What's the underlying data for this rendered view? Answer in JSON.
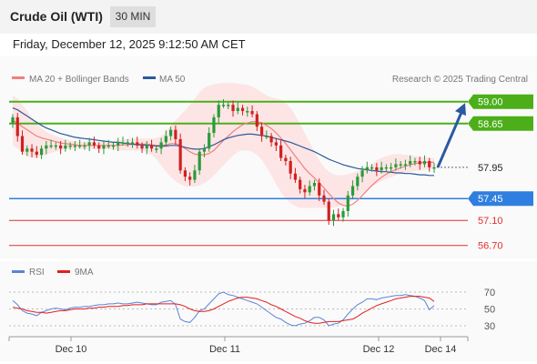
{
  "header": {
    "title": "Crude Oil (WTI)",
    "timeframe": "30 MIN",
    "datetime": "Friday, December 12, 2025 9:12:50 AM CET"
  },
  "legend": {
    "ma20_label": "MA 20 + Bollinger Bands",
    "ma50_label": "MA 50",
    "copyright": "Research © 2025 Trading Central",
    "rsi_label": "RSI",
    "ma9_label": "9MA"
  },
  "colors": {
    "resistance": "#4caf1a",
    "pivot": "#2f7fe0",
    "support": "#e03030",
    "current": "#333333",
    "ma20": "#f08080",
    "ma50": "#2a5a9a",
    "band": "#fde0e0",
    "rsi": "#5b84d6",
    "rsi_ma": "#e02020",
    "bull": "#2a9a3a",
    "bear": "#d02020",
    "arrow": "#2a5aa0"
  },
  "chart_data": [
    {
      "type": "candlestick",
      "title": "",
      "ylim": [
        56.55,
        59.2
      ],
      "x_ticks": [
        "Dec 10",
        "Dec 11",
        "Dec 12",
        "Dec 14"
      ],
      "levels": [
        {
          "value": 59.0,
          "label": "59.00",
          "kind": "resistance"
        },
        {
          "value": 58.65,
          "label": "58.65",
          "kind": "resistance"
        },
        {
          "value": 57.95,
          "label": "57.95",
          "kind": "current"
        },
        {
          "value": 57.45,
          "label": "57.45",
          "kind": "pivot"
        },
        {
          "value": 57.1,
          "label": "57.10",
          "kind": "support"
        },
        {
          "value": 56.7,
          "label": "56.70",
          "kind": "support"
        }
      ],
      "close": [
        58.75,
        58.45,
        58.2,
        58.25,
        58.2,
        58.15,
        58.25,
        58.3,
        58.3,
        58.3,
        58.25,
        58.3,
        58.3,
        58.3,
        58.3,
        58.3,
        58.35,
        58.3,
        58.25,
        58.3,
        58.3,
        58.3,
        58.35,
        58.35,
        58.35,
        58.35,
        58.3,
        58.25,
        58.3,
        58.25,
        58.25,
        58.35,
        58.45,
        58.55,
        58.4,
        57.9,
        57.8,
        57.75,
        57.9,
        58.2,
        58.25,
        58.5,
        58.75,
        58.95,
        58.95,
        58.95,
        58.85,
        58.9,
        58.85,
        58.85,
        58.8,
        58.6,
        58.45,
        58.45,
        58.35,
        58.3,
        58.1,
        58.05,
        57.85,
        57.75,
        57.6,
        57.55,
        57.65,
        57.7,
        57.5,
        57.4,
        57.1,
        57.2,
        57.15,
        57.25,
        57.5,
        57.65,
        57.8,
        57.9,
        57.95,
        57.95,
        57.9,
        57.95,
        57.95,
        57.95,
        58.0,
        58.0,
        58.0,
        58.05,
        58.05,
        58.0,
        58.05,
        57.95,
        57.95
      ],
      "open": [
        58.65,
        58.75,
        58.45,
        58.2,
        58.25,
        58.2,
        58.15,
        58.25,
        58.3,
        58.3,
        58.3,
        58.25,
        58.3,
        58.3,
        58.3,
        58.3,
        58.3,
        58.35,
        58.3,
        58.25,
        58.3,
        58.3,
        58.3,
        58.35,
        58.35,
        58.35,
        58.35,
        58.3,
        58.25,
        58.3,
        58.25,
        58.25,
        58.35,
        58.45,
        58.55,
        58.4,
        57.9,
        57.8,
        57.75,
        57.9,
        58.2,
        58.25,
        58.5,
        58.75,
        58.95,
        58.95,
        58.95,
        58.85,
        58.9,
        58.85,
        58.85,
        58.8,
        58.6,
        58.45,
        58.45,
        58.35,
        58.3,
        58.1,
        58.05,
        57.85,
        57.75,
        57.6,
        57.55,
        57.65,
        57.7,
        57.5,
        57.4,
        57.1,
        57.2,
        57.15,
        57.25,
        57.5,
        57.65,
        57.8,
        57.9,
        57.95,
        57.95,
        57.9,
        57.95,
        57.95,
        57.95,
        58.0,
        58.0,
        58.0,
        58.05,
        58.05,
        58.0,
        58.05,
        57.95
      ],
      "ma20": [
        58.7,
        58.66,
        58.6,
        58.55,
        58.5,
        58.45,
        58.42,
        58.4,
        58.38,
        58.36,
        58.34,
        58.33,
        58.32,
        58.31,
        58.3,
        58.3,
        58.3,
        58.3,
        58.3,
        58.3,
        58.3,
        58.3,
        58.3,
        58.31,
        58.31,
        58.32,
        58.32,
        58.32,
        58.32,
        58.31,
        58.3,
        58.3,
        58.31,
        58.33,
        58.33,
        58.3,
        58.25,
        58.2,
        58.16,
        58.15,
        58.15,
        58.17,
        58.22,
        58.3,
        58.38,
        58.45,
        58.52,
        58.58,
        58.63,
        58.66,
        58.68,
        58.68,
        58.66,
        58.62,
        58.57,
        58.5,
        58.42,
        58.33,
        58.23,
        58.13,
        58.03,
        57.93,
        57.85,
        57.78,
        57.7,
        57.62,
        57.53,
        57.45,
        57.38,
        57.34,
        57.33,
        57.36,
        57.42,
        57.5,
        57.58,
        57.66,
        57.73,
        57.79,
        57.84,
        57.88,
        57.91,
        57.94,
        57.97,
        57.99,
        58.01,
        58.02,
        58.03,
        58.03,
        58.03
      ],
      "ma50": [
        58.9,
        58.87,
        58.82,
        58.77,
        58.72,
        58.67,
        58.62,
        58.58,
        58.55,
        58.52,
        58.49,
        58.47,
        58.45,
        58.43,
        58.42,
        58.41,
        58.4,
        58.39,
        58.38,
        58.37,
        58.36,
        58.35,
        58.35,
        58.34,
        58.33,
        58.32,
        58.31,
        58.31,
        58.3,
        58.3,
        58.29,
        58.29,
        58.29,
        58.3,
        58.3,
        58.29,
        58.27,
        58.25,
        58.24,
        58.24,
        58.25,
        58.28,
        58.31,
        58.35,
        58.39,
        58.42,
        58.44,
        58.46,
        58.47,
        58.48,
        58.48,
        58.47,
        58.46,
        58.45,
        58.43,
        58.41,
        58.39,
        58.37,
        58.35,
        58.32,
        58.29,
        58.26,
        58.23,
        58.2,
        58.16,
        58.12,
        58.08,
        58.05,
        58.02,
        57.99,
        57.97,
        57.95,
        57.93,
        57.92,
        57.91,
        57.9,
        57.89,
        57.88,
        57.88,
        57.87,
        57.86,
        57.86,
        57.85,
        57.85,
        57.84,
        57.83,
        57.83,
        57.82,
        57.82
      ],
      "bb_upper": [
        59.1,
        59.05,
        58.95,
        58.85,
        58.75,
        58.65,
        58.58,
        58.52,
        58.48,
        58.45,
        58.42,
        58.4,
        58.38,
        58.37,
        58.36,
        58.36,
        58.36,
        58.36,
        58.36,
        58.36,
        58.36,
        58.37,
        58.38,
        58.39,
        58.4,
        58.41,
        58.41,
        58.41,
        58.41,
        58.41,
        58.42,
        58.45,
        58.52,
        58.62,
        58.7,
        58.78,
        58.86,
        58.95,
        59.05,
        59.15,
        59.22,
        59.26,
        59.28,
        59.29,
        59.3,
        59.3,
        59.3,
        59.29,
        59.28,
        59.27,
        59.24,
        59.2,
        59.15,
        59.1,
        59.07,
        59.05,
        59.03,
        58.98,
        58.9,
        58.78,
        58.64,
        58.5,
        58.35,
        58.2,
        58.06,
        57.95,
        57.88,
        57.84,
        57.82,
        57.82,
        57.84,
        57.86,
        57.89,
        57.92,
        57.96,
        58.01,
        58.06,
        58.1,
        58.13,
        58.15,
        58.16,
        58.16,
        58.15,
        58.14,
        58.13,
        58.12,
        58.11,
        58.1,
        58.1
      ],
      "bb_lower": [
        58.3,
        58.25,
        58.18,
        58.13,
        58.1,
        58.1,
        58.12,
        58.15,
        58.18,
        58.2,
        58.22,
        58.24,
        58.25,
        58.25,
        58.25,
        58.24,
        58.24,
        58.24,
        58.24,
        58.24,
        58.24,
        58.23,
        58.22,
        58.22,
        58.22,
        58.22,
        58.22,
        58.22,
        58.2,
        58.15,
        58.08,
        57.98,
        57.88,
        57.8,
        57.73,
        57.68,
        57.65,
        57.64,
        57.64,
        57.66,
        57.7,
        57.75,
        57.82,
        57.9,
        57.98,
        58.06,
        58.14,
        58.2,
        58.22,
        58.22,
        58.2,
        58.15,
        58.07,
        57.95,
        57.82,
        57.68,
        57.55,
        57.45,
        57.38,
        57.33,
        57.3,
        57.3,
        57.3,
        57.3,
        57.3,
        57.3,
        57.3,
        57.31,
        57.32,
        57.34,
        57.38,
        57.42,
        57.47,
        57.52,
        57.58,
        57.64,
        57.69,
        57.73,
        57.76,
        57.79,
        57.82,
        57.84,
        57.86,
        57.88,
        57.89,
        57.9,
        57.91,
        57.92,
        57.92
      ]
    },
    {
      "type": "line",
      "title": "",
      "ylim": [
        20,
        80
      ],
      "y_ticks": [
        70,
        50,
        30
      ],
      "series": [
        {
          "name": "RSI",
          "values": [
            60,
            55,
            48,
            45,
            44,
            42,
            46,
            48,
            50,
            51,
            50,
            49,
            51,
            52,
            52,
            53,
            53,
            54,
            55,
            55,
            56,
            56,
            57,
            56,
            56,
            57,
            58,
            57,
            56,
            55,
            55,
            58,
            59,
            60,
            55,
            38,
            35,
            34,
            40,
            48,
            50,
            56,
            62,
            68,
            70,
            67,
            66,
            64,
            62,
            60,
            58,
            56,
            52,
            48,
            44,
            40,
            38,
            34,
            31,
            30,
            32,
            33,
            36,
            40,
            40,
            37,
            30,
            32,
            33,
            37,
            44,
            50,
            55,
            58,
            62,
            62,
            61,
            63,
            64,
            65,
            66,
            66,
            67,
            66,
            65,
            63,
            60,
            49,
            54
          ]
        },
        {
          "name": "9MA",
          "values": [
            52,
            51,
            50,
            48,
            47,
            46,
            46,
            45,
            46,
            47,
            48,
            48,
            49,
            50,
            50,
            50,
            51,
            51,
            52,
            52,
            53,
            53,
            53,
            54,
            54,
            55,
            55,
            55,
            56,
            56,
            56,
            56,
            56,
            56,
            56,
            55,
            53,
            50,
            48,
            47,
            47,
            48,
            50,
            53,
            56,
            59,
            61,
            63,
            64,
            64,
            63,
            62,
            60,
            58,
            55,
            53,
            50,
            47,
            44,
            41,
            39,
            36,
            34,
            33,
            33,
            34,
            35,
            35,
            35,
            36,
            37,
            38,
            41,
            45,
            48,
            51,
            54,
            56,
            58,
            60,
            62,
            63,
            64,
            65,
            65,
            65,
            64,
            63,
            59
          ]
        }
      ]
    }
  ]
}
